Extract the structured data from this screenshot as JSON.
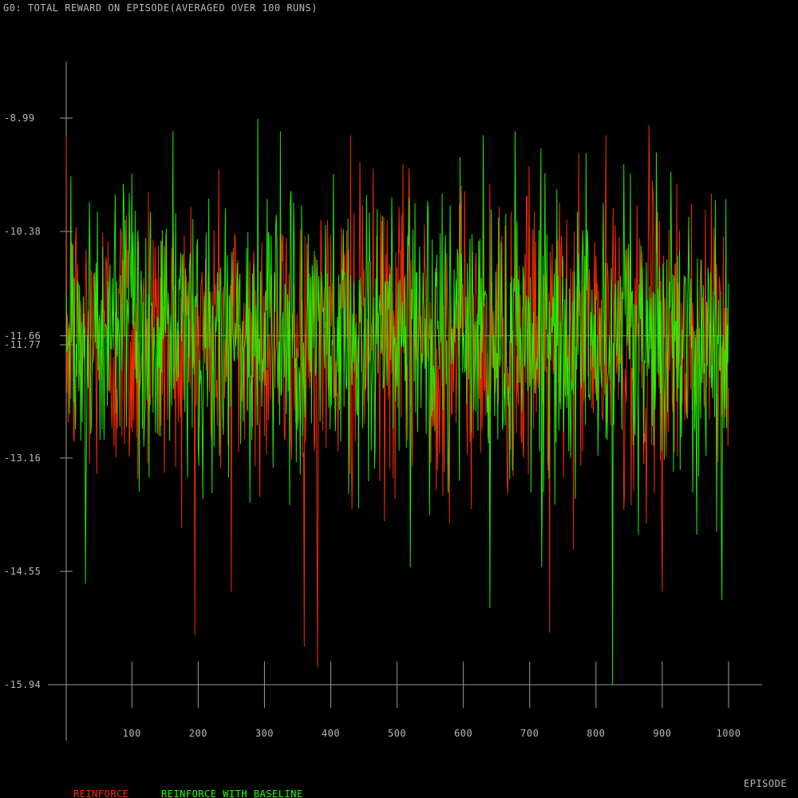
{
  "chart_data": {
    "type": "line",
    "title": "G0: TOTAL REWARD ON EPISODE(AVERAGED OVER 100 RUNS)",
    "xlabel": "EPISODE",
    "ylabel": "",
    "xlim": [
      1,
      1000
    ],
    "ylim": [
      -15.94,
      -8.14
    ],
    "x_ticks": [
      100,
      200,
      300,
      400,
      500,
      600,
      700,
      800,
      900,
      1000
    ],
    "x_tick_labels": [
      "100",
      "200",
      "300",
      "400",
      "500",
      "600",
      "700",
      "800",
      "900",
      "1000"
    ],
    "y_ticks": [
      -8.99,
      -10.38,
      -11.77,
      -13.16,
      -14.55,
      -15.94
    ],
    "y_tick_labels": [
      "-8.99",
      "-10.38",
      "-11.77",
      "-13.16",
      "-14.55",
      "-15.94"
    ],
    "reference_line": {
      "y": -11.66,
      "label": "-11.66"
    },
    "series": [
      {
        "name": "REINFORCE",
        "color": "#ff2a00",
        "summary": {
          "mean": -11.7,
          "std": 0.9,
          "min": -15.73,
          "max": -9.05
        },
        "peaks": [
          {
            "x": 125,
            "y": -9.9
          },
          {
            "x": 430,
            "y": -9.2
          },
          {
            "x": 640,
            "y": -9.8
          },
          {
            "x": 880,
            "y": -9.08
          }
        ],
        "troughs": [
          {
            "x": 250,
            "y": -14.8
          },
          {
            "x": 380,
            "y": -15.73
          },
          {
            "x": 730,
            "y": -15.3
          },
          {
            "x": 900,
            "y": -14.8
          }
        ]
      },
      {
        "name": "REINFORCE WITH BASELINE",
        "color": "#22ff00",
        "summary": {
          "mean": -11.66,
          "std": 0.85,
          "min": -15.94,
          "max": -9.0
        },
        "peaks": [
          {
            "x": 8,
            "y": -9.7
          },
          {
            "x": 290,
            "y": -9.0
          },
          {
            "x": 630,
            "y": -9.2
          }
        ],
        "troughs": [
          {
            "x": 30,
            "y": -14.7
          },
          {
            "x": 520,
            "y": -14.5
          },
          {
            "x": 640,
            "y": -15.0
          },
          {
            "x": 825,
            "y": -15.94
          },
          {
            "x": 990,
            "y": -14.9
          }
        ]
      }
    ],
    "legend_position": "bottom-left"
  }
}
